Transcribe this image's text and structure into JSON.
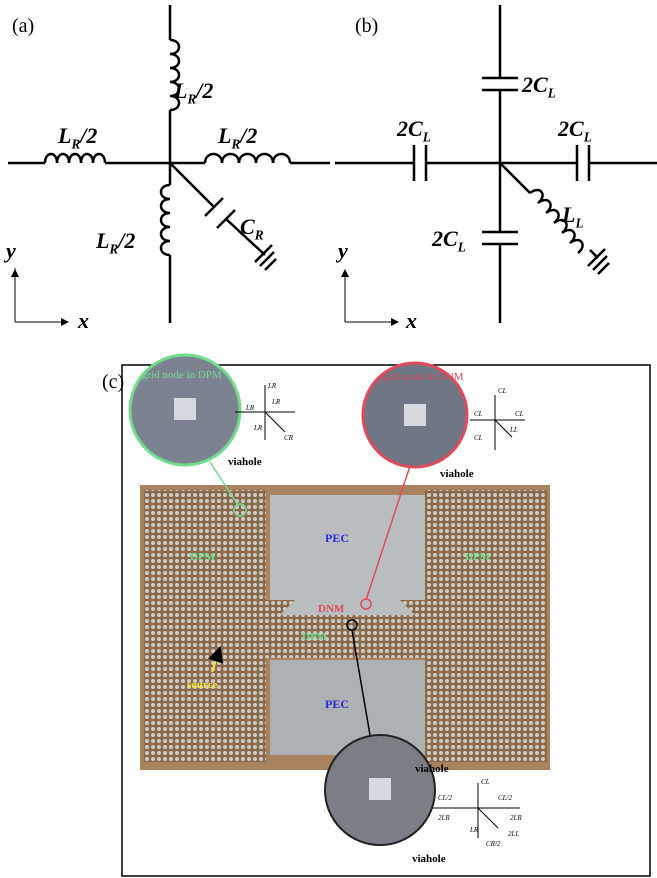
{
  "panel_a": {
    "label": "(a)",
    "top": {
      "main": "L",
      "sub": "R",
      "tail": "/2"
    },
    "left": {
      "main": "L",
      "sub": "R",
      "tail": "/2"
    },
    "right": {
      "main": "L",
      "sub": "R",
      "tail": "/2"
    },
    "bottom": {
      "main": "L",
      "sub": "R",
      "tail": "/2"
    },
    "cap": {
      "main": "C",
      "sub": "R"
    },
    "y_axis": "y",
    "x_axis": "x"
  },
  "panel_b": {
    "label": "(b)",
    "top": {
      "main": "2C",
      "sub": "L"
    },
    "left": {
      "main": "2C",
      "sub": "L"
    },
    "right": {
      "main": "2C",
      "sub": "L"
    },
    "bottom": {
      "main": "2C",
      "sub": "L"
    },
    "ind": {
      "main": "L",
      "sub": "L"
    },
    "y_axis": "y",
    "x_axis": "x"
  },
  "panel_c": {
    "label": "(c)",
    "dpm_node": "grid node in DPM",
    "dnm_node": "grid node in DNM",
    "viaholes": [
      "viahole",
      "viahole",
      "viahole",
      "viahole"
    ],
    "dpm_labels": [
      "DPM",
      "DPM",
      "DPM"
    ],
    "pec_labels": [
      "PEC",
      "PEC"
    ],
    "dnm_label": "DNM",
    "source": "source",
    "inset_dpm": [
      "LR",
      "LR",
      "LR",
      "LR",
      "CR"
    ],
    "inset_dnm": [
      "CL",
      "CL",
      "CL",
      "CL",
      "LL"
    ],
    "inset_mixed": [
      "CL",
      "CL/2",
      "CL/2",
      "2LR",
      "2LR",
      "LR",
      "CR/2",
      "2LL"
    ]
  }
}
